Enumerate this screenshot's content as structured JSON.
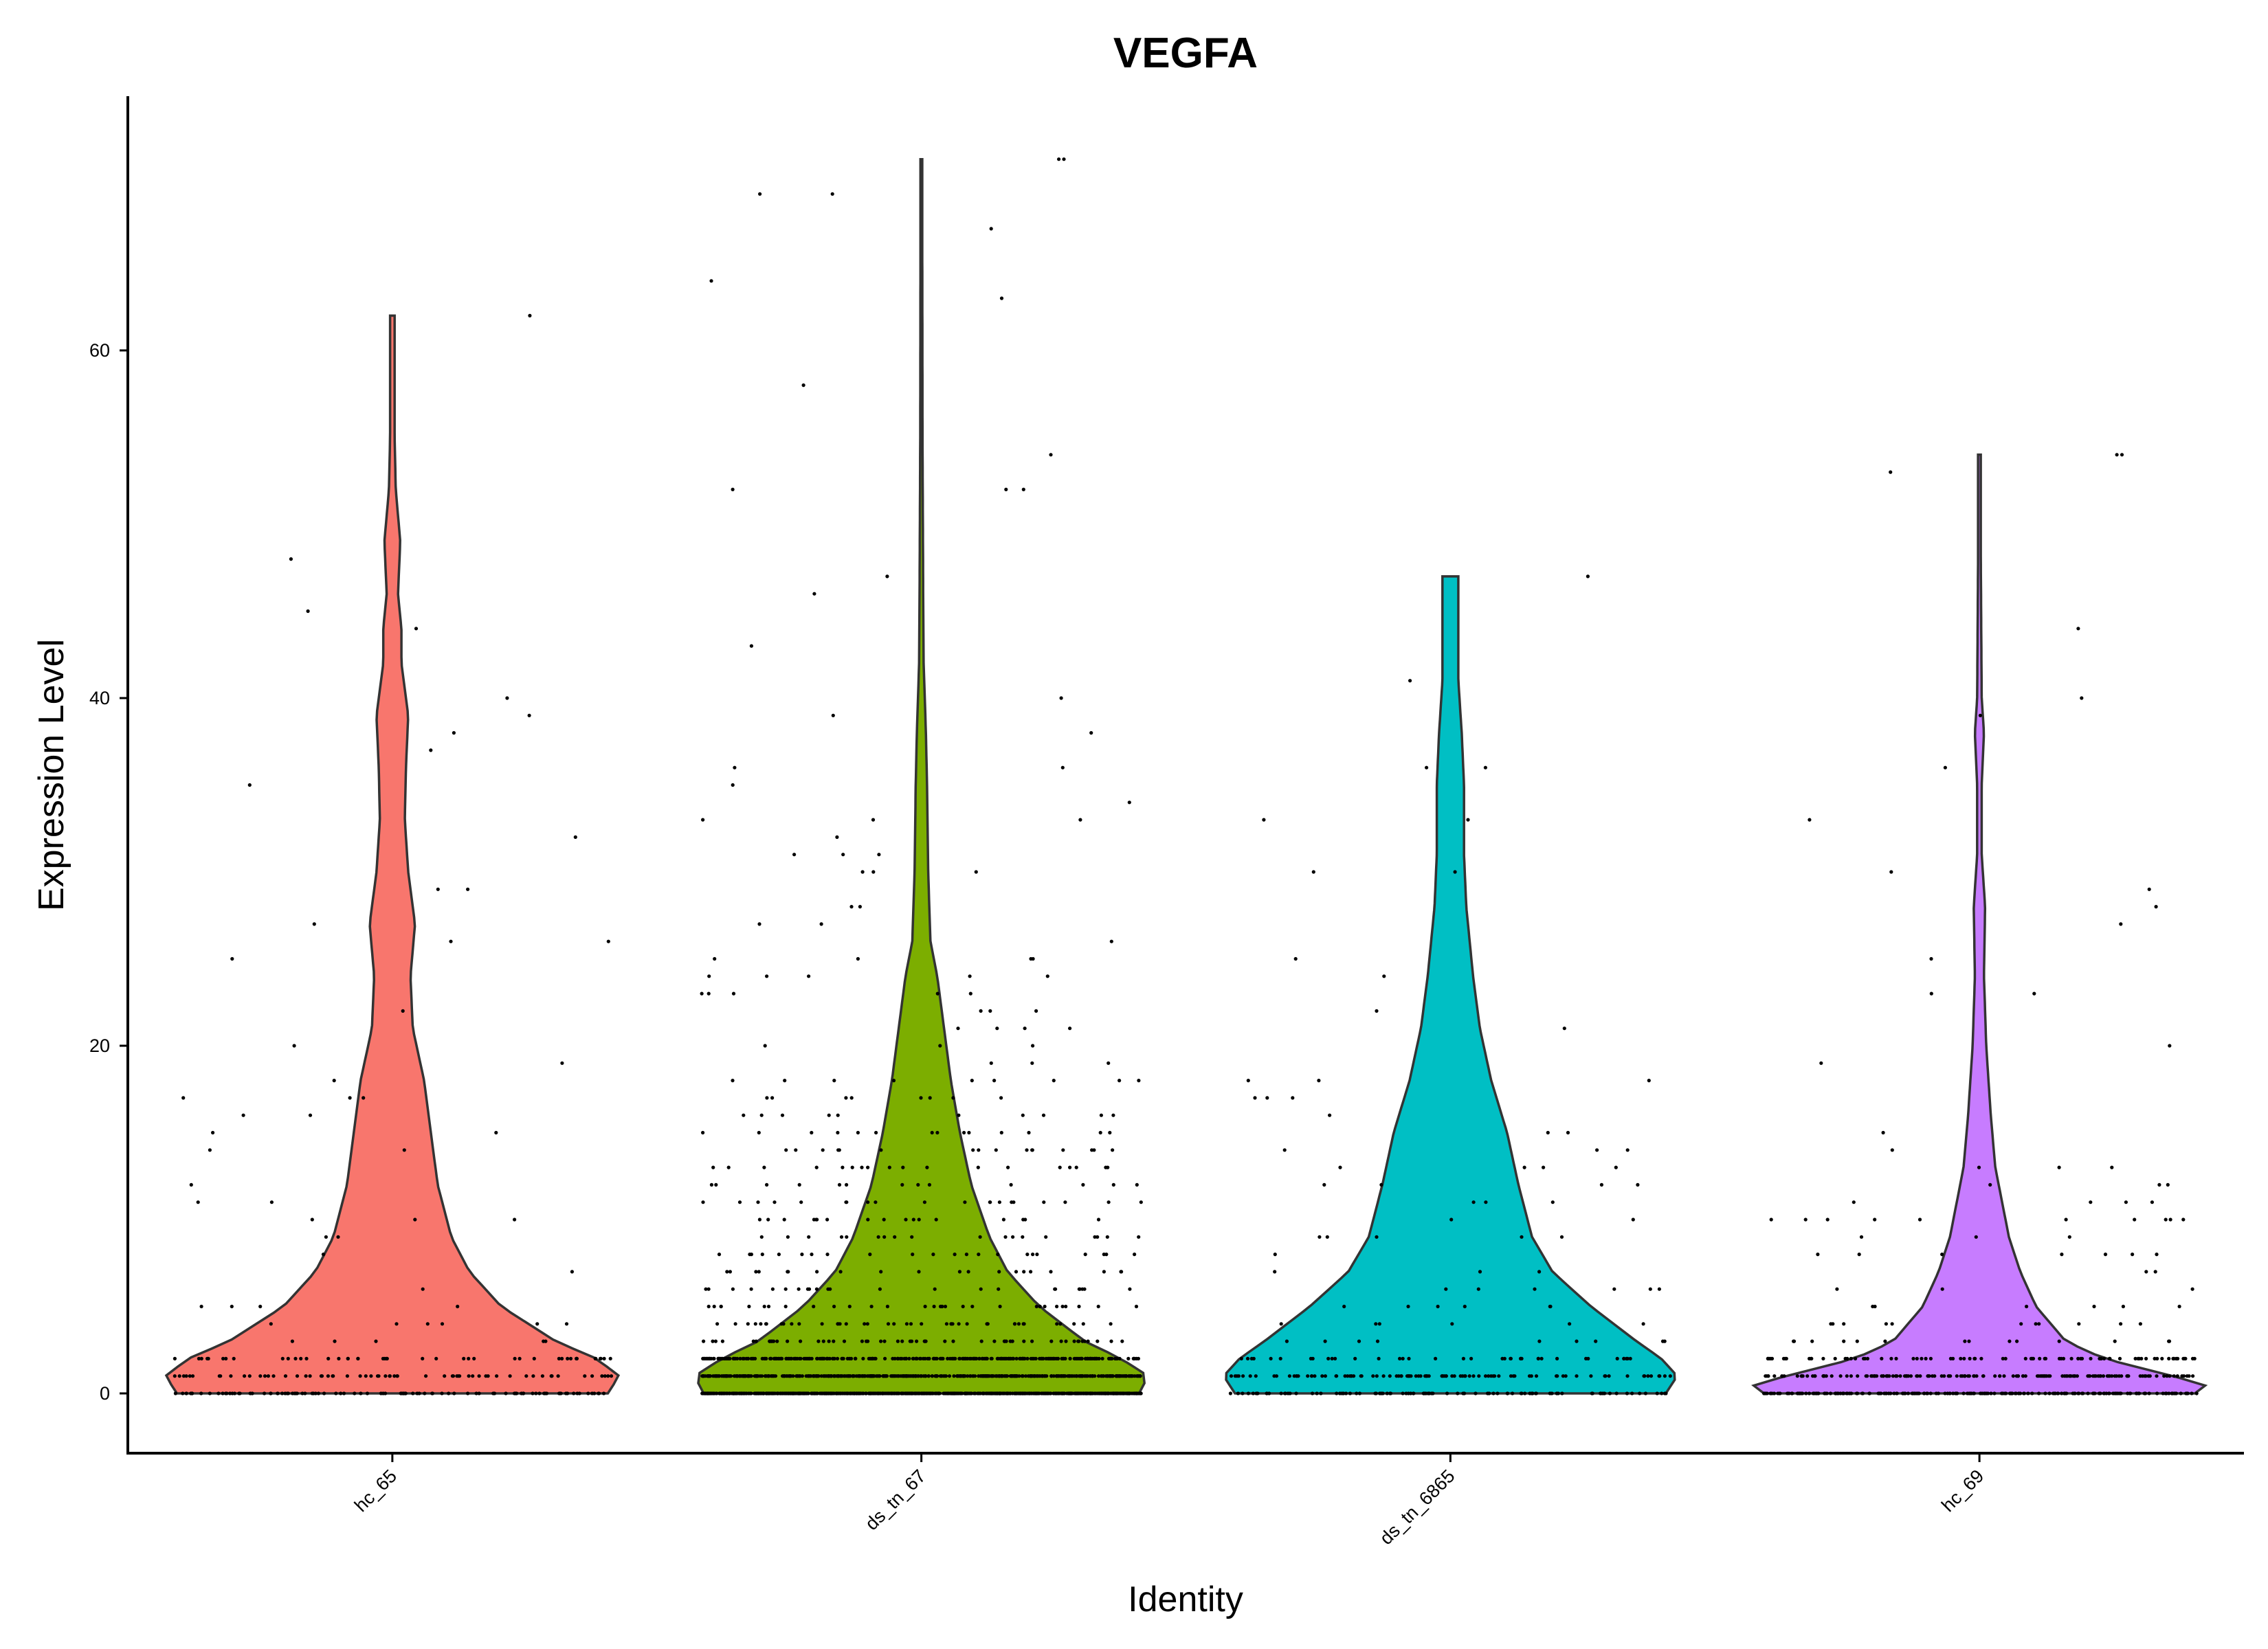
{
  "chart_data": {
    "type": "violin",
    "title": "VEGFA",
    "xlabel": "Identity",
    "ylabel": "Expression Level",
    "ylim": [
      -7,
      75
    ],
    "yticks": [
      0,
      20,
      40,
      60
    ],
    "grid": false,
    "legend": "none",
    "categories": [
      "hc_65",
      "ds_tn_67",
      "ds_tn_6865",
      "hc_69"
    ],
    "series": [
      {
        "color": "#F8766D",
        "max": 62,
        "n_points": 260,
        "density": [
          [
            0,
            0.95
          ],
          [
            1,
            1.0
          ],
          [
            2,
            0.9
          ],
          [
            3,
            0.72
          ],
          [
            5,
            0.48
          ],
          [
            7,
            0.34
          ],
          [
            9,
            0.26
          ],
          [
            12,
            0.2
          ],
          [
            15,
            0.17
          ],
          [
            18,
            0.14
          ],
          [
            21,
            0.09
          ],
          [
            24,
            0.08
          ],
          [
            27,
            0.1
          ],
          [
            30,
            0.07
          ],
          [
            33,
            0.055
          ],
          [
            36,
            0.06
          ],
          [
            39,
            0.07
          ],
          [
            42,
            0.04
          ],
          [
            44,
            0.04
          ],
          [
            46,
            0.025
          ],
          [
            49,
            0.035
          ],
          [
            52,
            0.015
          ],
          [
            55,
            0.01
          ],
          [
            58,
            0.01
          ],
          [
            62,
            0.01
          ]
        ]
      },
      {
        "color": "#7CAE00",
        "max": 71,
        "n_points": 1900,
        "density": [
          [
            0,
            0.96
          ],
          [
            1,
            1.0
          ],
          [
            2,
            0.88
          ],
          [
            3,
            0.72
          ],
          [
            5,
            0.52
          ],
          [
            7,
            0.38
          ],
          [
            9,
            0.3
          ],
          [
            12,
            0.22
          ],
          [
            15,
            0.17
          ],
          [
            18,
            0.13
          ],
          [
            21,
            0.1
          ],
          [
            24,
            0.07
          ],
          [
            26,
            0.04
          ],
          [
            30,
            0.03
          ],
          [
            35,
            0.025
          ],
          [
            38,
            0.02
          ],
          [
            42,
            0.01
          ],
          [
            46,
            0.008
          ],
          [
            55,
            0.005
          ],
          [
            65,
            0.004
          ],
          [
            71,
            0.004
          ]
        ]
      },
      {
        "color": "#00BFC4",
        "max": 47,
        "n_points": 300,
        "density": [
          [
            0,
            0.95
          ],
          [
            1,
            1.0
          ],
          [
            2,
            0.93
          ],
          [
            3,
            0.82
          ],
          [
            5,
            0.62
          ],
          [
            7,
            0.45
          ],
          [
            9,
            0.36
          ],
          [
            12,
            0.3
          ],
          [
            15,
            0.25
          ],
          [
            18,
            0.18
          ],
          [
            21,
            0.13
          ],
          [
            24,
            0.1
          ],
          [
            28,
            0.07
          ],
          [
            31,
            0.06
          ],
          [
            35,
            0.06
          ],
          [
            38,
            0.05
          ],
          [
            41,
            0.035
          ],
          [
            44,
            0.035
          ],
          [
            47,
            0.035
          ]
        ]
      },
      {
        "color": "#C77CFF",
        "max": 54,
        "n_points": 500,
        "density": [
          [
            0,
            0.95
          ],
          [
            0.5,
            1.0
          ],
          [
            1,
            0.85
          ],
          [
            2,
            0.55
          ],
          [
            3,
            0.38
          ],
          [
            5,
            0.25
          ],
          [
            7,
            0.18
          ],
          [
            9,
            0.13
          ],
          [
            11,
            0.1
          ],
          [
            13,
            0.07
          ],
          [
            16,
            0.05
          ],
          [
            20,
            0.03
          ],
          [
            24,
            0.02
          ],
          [
            28,
            0.025
          ],
          [
            31,
            0.01
          ],
          [
            35,
            0.01
          ],
          [
            38,
            0.02
          ],
          [
            40,
            0.01
          ],
          [
            44,
            0.008
          ],
          [
            48,
            0.006
          ],
          [
            54,
            0.006
          ]
        ]
      }
    ]
  }
}
